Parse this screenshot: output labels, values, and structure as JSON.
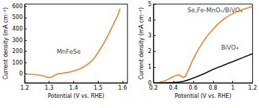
{
  "chart_data": [
    {
      "type": "line",
      "x_label": "Potential (V vs. RHE)",
      "y_label": "Current density (mA cm⁻²)",
      "xlim": [
        1.2,
        1.62
      ],
      "xticks": [
        1.2,
        1.3,
        1.4,
        1.5,
        1.6
      ],
      "ylim": [
        -80,
        620
      ],
      "yticks": [
        0,
        100,
        200,
        300,
        400,
        500,
        600
      ],
      "grid": false,
      "annotations": [
        {
          "text": "MnFeSe",
          "x": 1.38,
          "y": 200
        }
      ],
      "series": [
        {
          "name": "MnFeSe",
          "color": "#f07c1c",
          "x": [
            1.2,
            1.22,
            1.25,
            1.28,
            1.3,
            1.31,
            1.33,
            1.35,
            1.38,
            1.4,
            1.42,
            1.44,
            1.46,
            1.48,
            1.5,
            1.52,
            1.54,
            1.56,
            1.58,
            1.59
          ],
          "values": [
            -5,
            -3,
            -8,
            -20,
            -32,
            -28,
            -5,
            5,
            15,
            25,
            40,
            60,
            90,
            130,
            190,
            260,
            340,
            430,
            520,
            580
          ]
        }
      ]
    },
    {
      "type": "line",
      "x_label": "Potential (V vs. RHE)",
      "y_label": "Current density (mA cm⁻²)",
      "xlim": [
        0.2,
        1.2
      ],
      "xticks": [
        0.2,
        0.4,
        0.6,
        0.8,
        1.0,
        1.2
      ],
      "ylim": [
        0,
        5
      ],
      "yticks": [
        0,
        1,
        2,
        3,
        4,
        5
      ],
      "grid": false,
      "annotations": [
        {
          "text": "Se,Fe-MnOₓ/BiVO₄",
          "x": 0.82,
          "y": 4.6
        },
        {
          "text": "BiVO₄",
          "x": 0.97,
          "y": 2.25
        }
      ],
      "series": [
        {
          "name": "Se,Fe-MnOₓ/BiVO₄",
          "color": "#f07c1c",
          "x": [
            0.2,
            0.3,
            0.4,
            0.45,
            0.5,
            0.55,
            0.6,
            0.7,
            0.8,
            0.9,
            1.0,
            1.1,
            1.2
          ],
          "values": [
            0.0,
            0.1,
            0.4,
            0.5,
            0.35,
            0.8,
            1.5,
            2.6,
            3.4,
            4.0,
            4.4,
            4.65,
            4.85
          ]
        },
        {
          "name": "BiVO₄",
          "color": "#000000",
          "x": [
            0.2,
            0.3,
            0.4,
            0.5,
            0.6,
            0.7,
            0.8,
            0.9,
            1.0,
            1.1,
            1.2
          ],
          "values": [
            0.0,
            0.0,
            0.02,
            0.1,
            0.3,
            0.55,
            0.85,
            1.1,
            1.35,
            1.6,
            1.85
          ]
        }
      ]
    }
  ]
}
